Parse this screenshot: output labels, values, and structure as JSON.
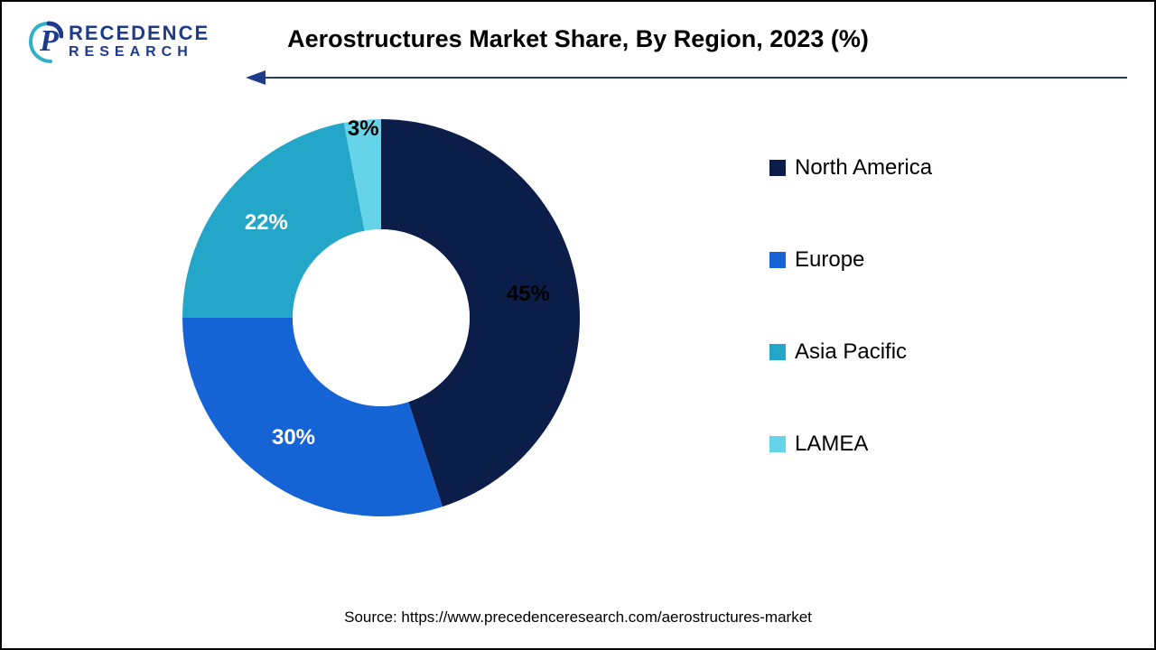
{
  "logo": {
    "brand_top": "RECEDENCE",
    "brand_bottom": "RESEARCH",
    "accent_color": "#1e3a8a",
    "swirl_color": "#2fb1c9"
  },
  "title": "Aerostructures Market Share, By Region, 2023 (%)",
  "title_fontsize": 27,
  "arrow": {
    "color": "#1e3a8a",
    "stroke_width": 2
  },
  "chart": {
    "type": "donut",
    "outer_radius": 220,
    "inner_radius": 98,
    "background_color": "#ffffff",
    "start_angle_deg": 0,
    "slices": [
      {
        "label": "North America",
        "value": 45,
        "color": "#0b1e4a",
        "text_color": "#000000",
        "display": "45%"
      },
      {
        "label": "Europe",
        "value": 30,
        "color": "#1663d6",
        "text_color": "#ffffff",
        "display": "30%"
      },
      {
        "label": "Asia Pacific",
        "value": 22,
        "color": "#24a6c9",
        "text_color": "#ffffff",
        "display": "22%"
      },
      {
        "label": "LAMEA",
        "value": 3,
        "color": "#66d4e8",
        "text_color": "#000000",
        "display": "3%"
      }
    ],
    "label_fontsize": 24,
    "label_radius": 165
  },
  "legend": {
    "fontsize": 24,
    "swatch_size": 18,
    "items": [
      {
        "label": "North America",
        "color": "#0b1e4a"
      },
      {
        "label": "Europe",
        "color": "#1663d6"
      },
      {
        "label": "Asia Pacific",
        "color": "#24a6c9"
      },
      {
        "label": "LAMEA",
        "color": "#66d4e8"
      }
    ]
  },
  "source": "Source: https://www.precedenceresearch.com/aerostructures-market",
  "source_fontsize": 17
}
